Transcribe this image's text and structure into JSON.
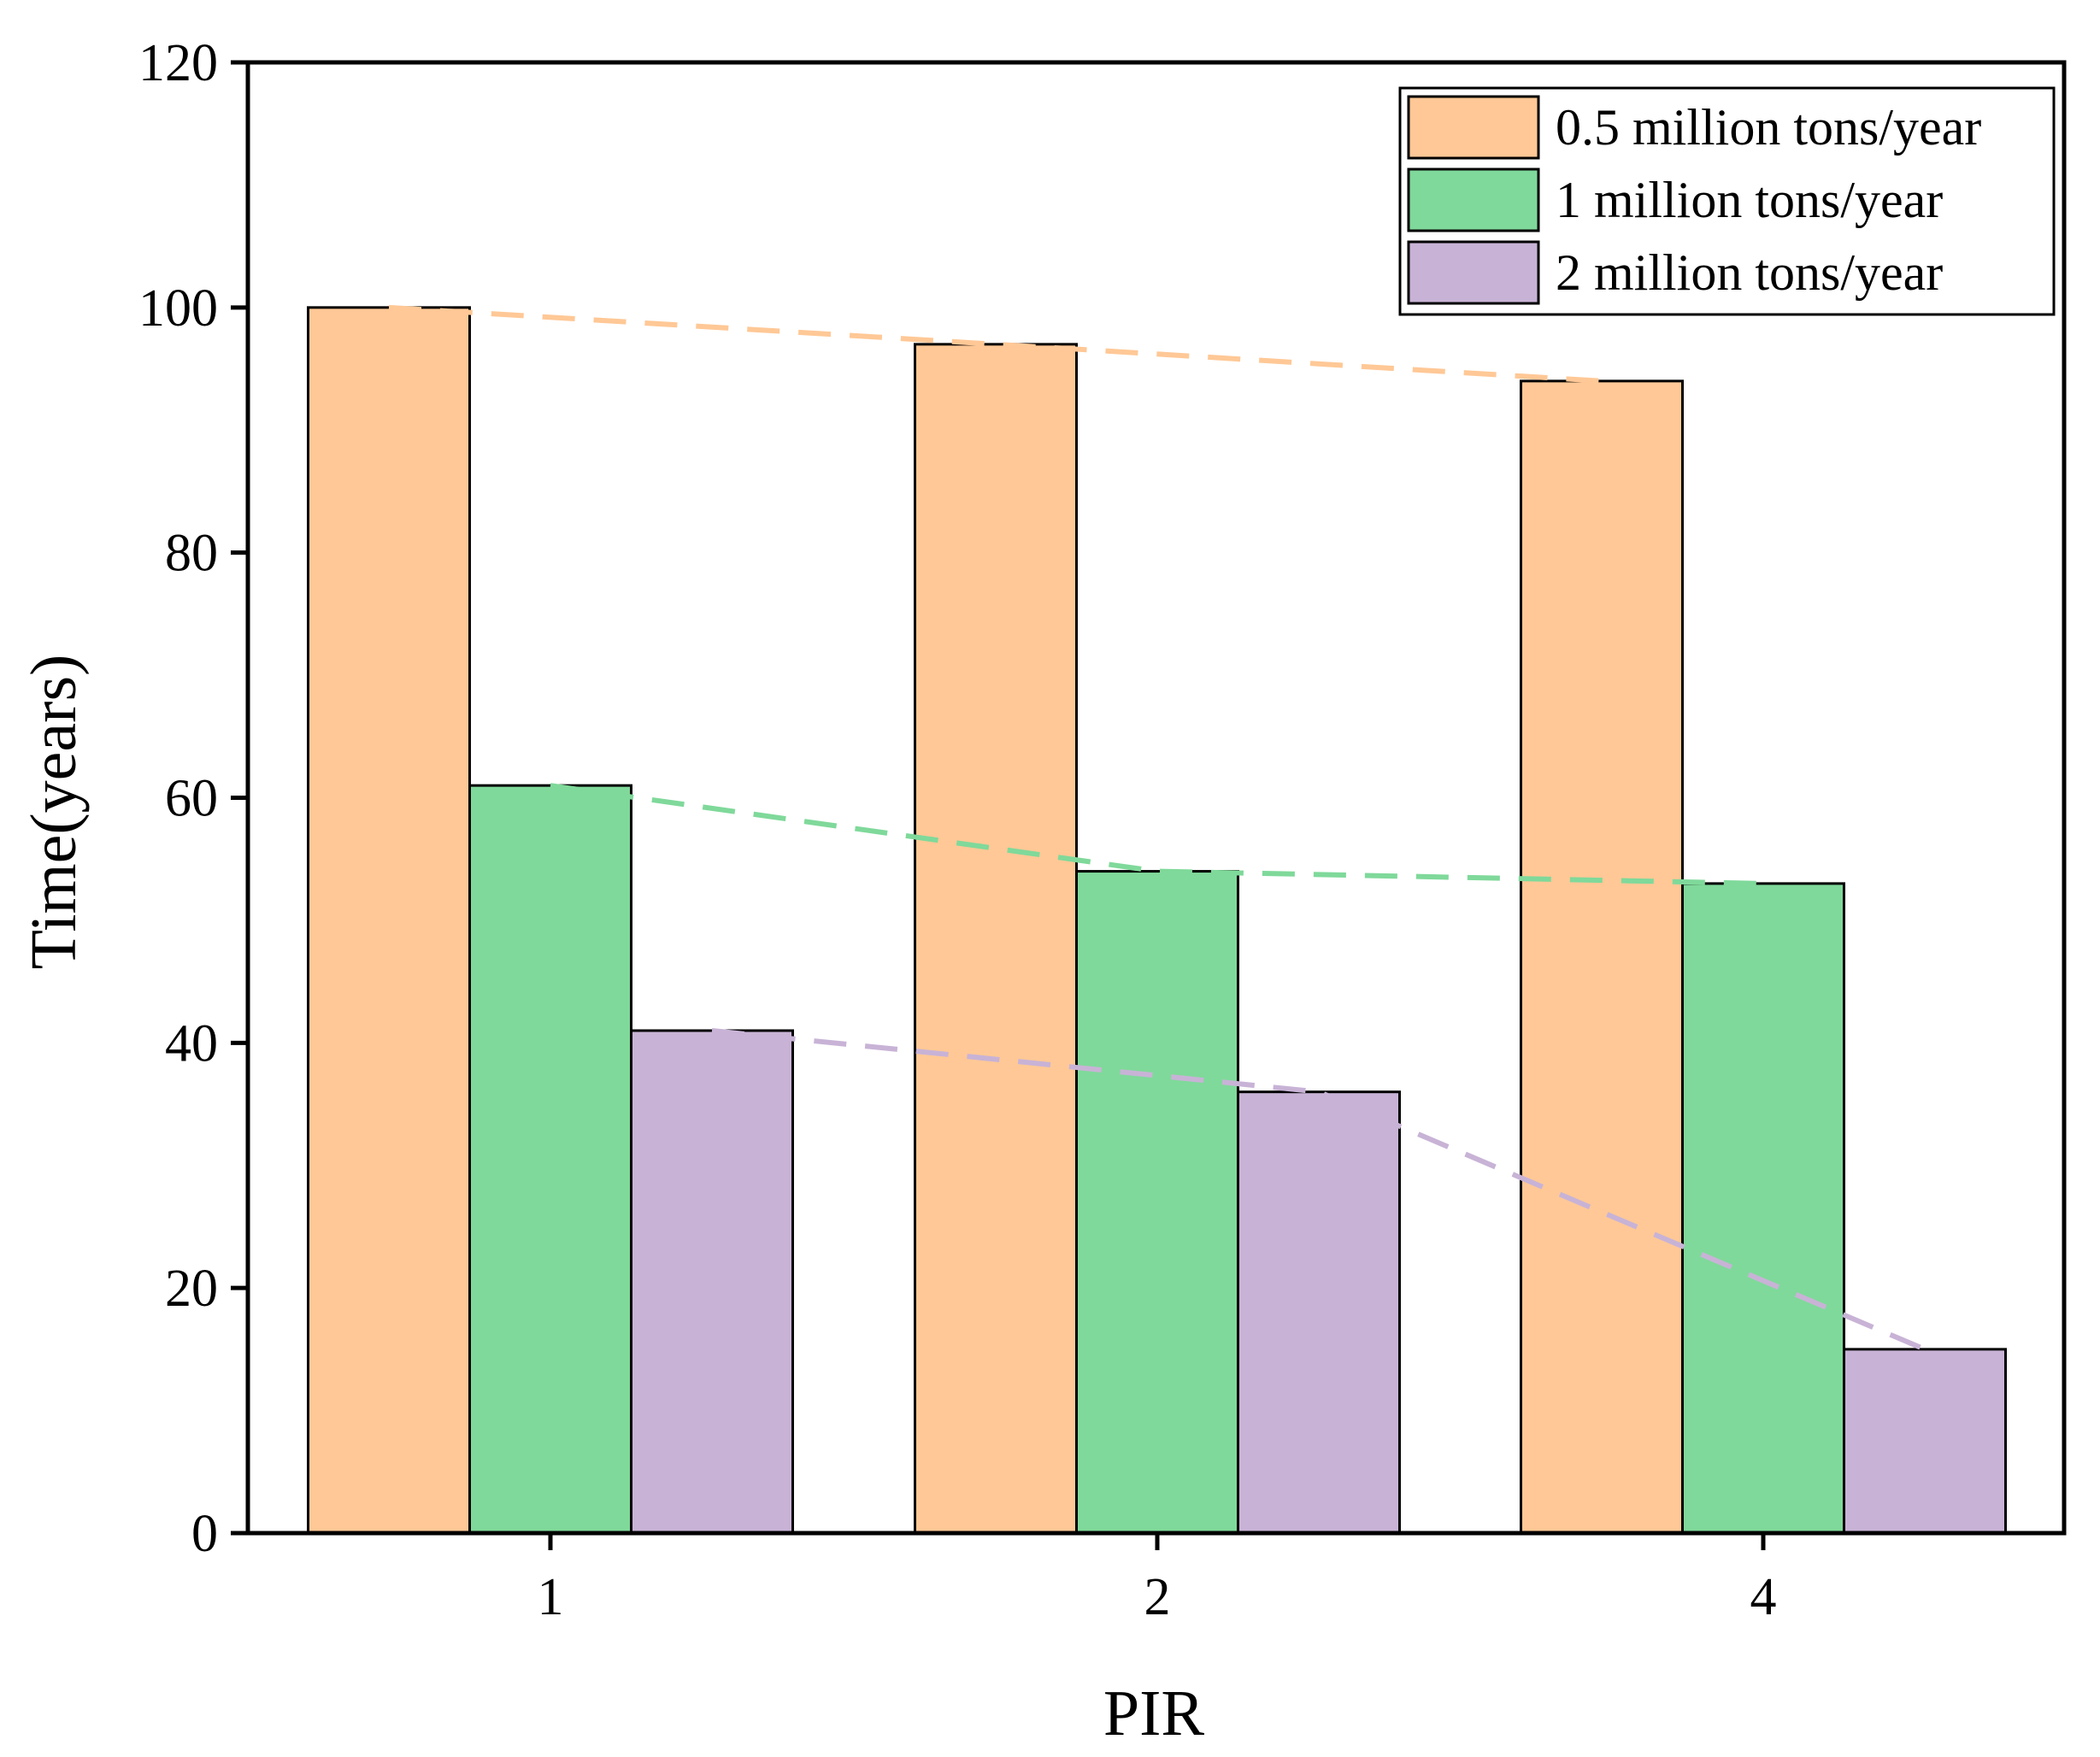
{
  "chart_data": {
    "type": "bar",
    "title": "",
    "xlabel": "PIR",
    "ylabel": "Time(years)",
    "categories": [
      "1",
      "2",
      "4"
    ],
    "ylim": [
      0,
      120
    ],
    "yticks": [
      0,
      20,
      40,
      60,
      80,
      100,
      120
    ],
    "grid": false,
    "legend_position": "top-right",
    "series": [
      {
        "name": "0.5 million tons/year",
        "values": [
          100,
          97,
          94
        ],
        "color": "#FFC896"
      },
      {
        "name": "1 million tons/year",
        "values": [
          61,
          54,
          53
        ],
        "color": "#7FD99A"
      },
      {
        "name": "2 million tons/year",
        "values": [
          41,
          36,
          15
        ],
        "color": "#C8B3D6"
      }
    ],
    "trend_lines": [
      {
        "series": "0.5 million tons/year",
        "style": "dashed",
        "color": "#FFC896"
      },
      {
        "series": "1 million tons/year",
        "style": "dashed",
        "color": "#7FD99A"
      },
      {
        "series": "2 million tons/year",
        "style": "dashed",
        "color": "#C8B3D6"
      }
    ]
  }
}
